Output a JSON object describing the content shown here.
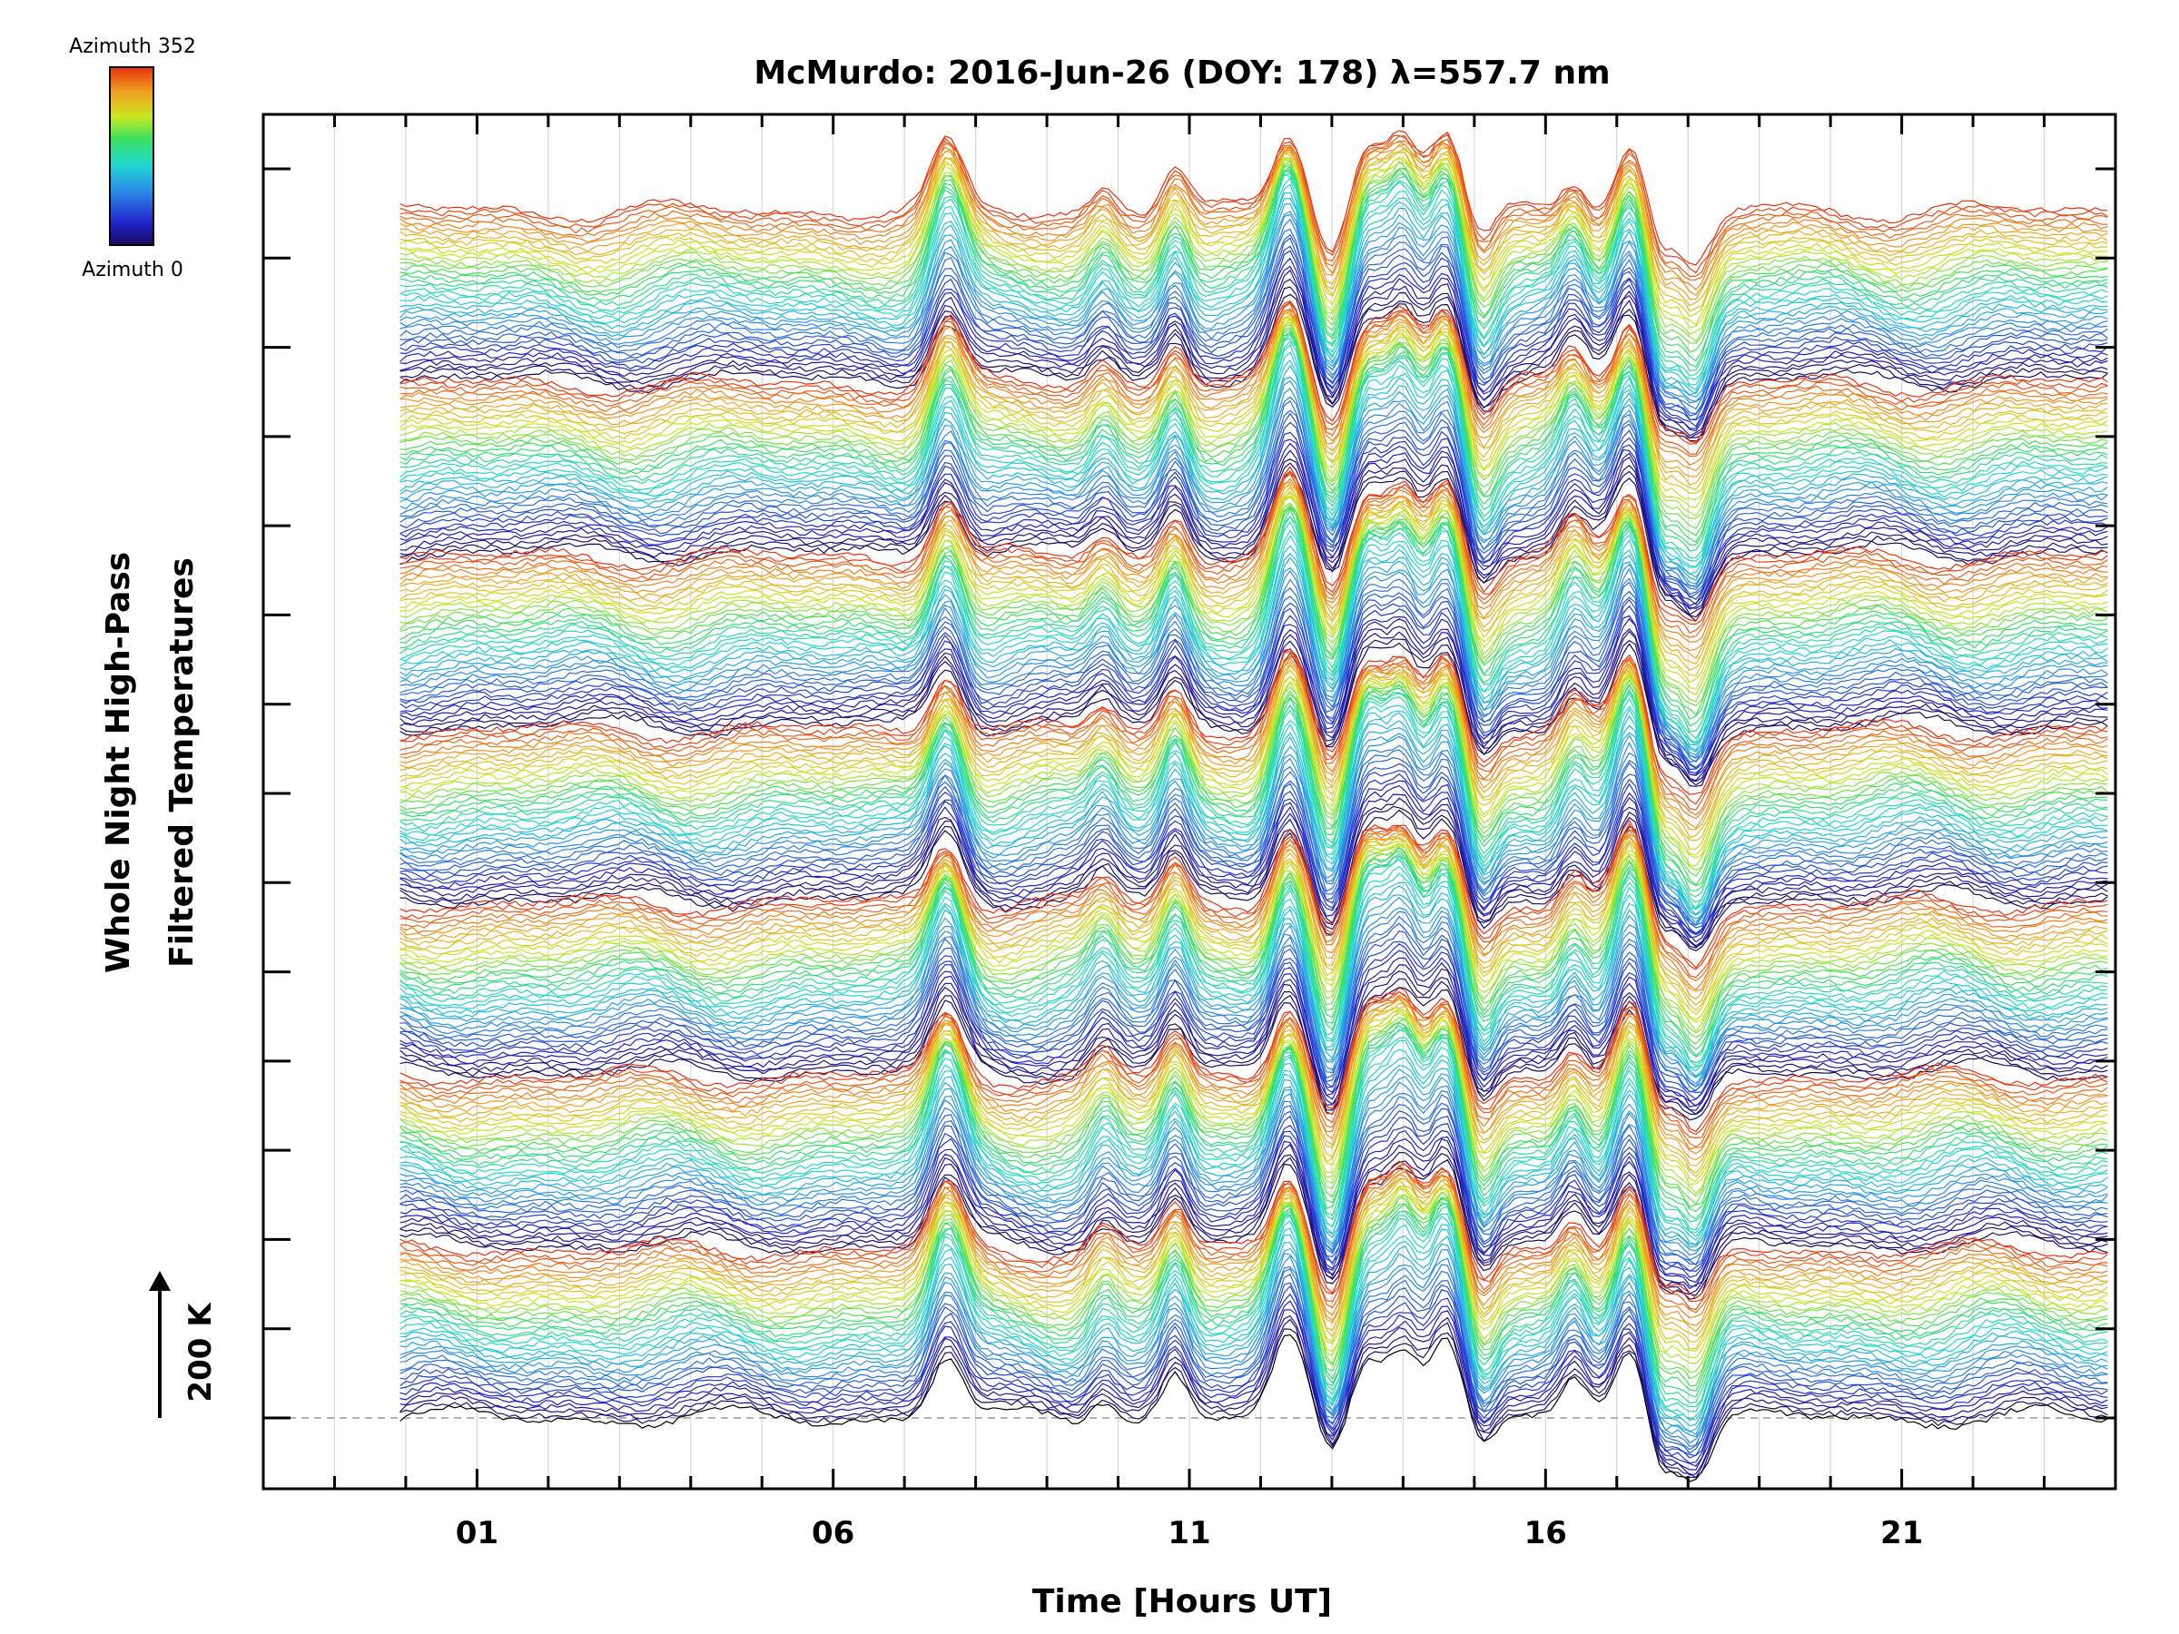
{
  "chart_data": {
    "type": "line",
    "title": "McMurdo: 2016-Jun-26 (DOY: 178) λ=557.7 nm",
    "xlabel": "Time [Hours UT]",
    "ylabel": [
      "Whole Night High-Pass",
      "Filtered Temperatures"
    ],
    "x_ticks": [
      "01",
      "06",
      "11",
      "16",
      "21"
    ],
    "x_tick_values": [
      1,
      6,
      11,
      16,
      21
    ],
    "xlim": [
      -2,
      24
    ],
    "data_xrange": [
      -0.08,
      23.9
    ],
    "y_ticks_count": 15,
    "scale_bar_label": "200 K",
    "scale_bar_value_K": 200,
    "colorbar": {
      "top_label": "Azimuth 352",
      "bottom_label": "Azimuth 0",
      "colormap": "rainbow (blue→cyan→green→yellow→orange)"
    },
    "series_description": "Stacked high-pass filtered temperature traces, one per azimuth (0–352), each offset vertically; color encodes azimuth.",
    "events": [
      {
        "hour": 7.6,
        "amplitude_K": 130
      },
      {
        "hour": 9.8,
        "amplitude_K": 50
      },
      {
        "hour": 10.8,
        "amplitude_K": 90
      },
      {
        "hour": 12.4,
        "amplitude_K": 160
      },
      {
        "hour": 13.0,
        "amplitude_K": -80
      },
      {
        "hour": 13.5,
        "amplitude_K": 130
      },
      {
        "hour": 14.0,
        "amplitude_K": 150
      },
      {
        "hour": 14.6,
        "amplitude_K": 160
      },
      {
        "hour": 15.1,
        "amplitude_K": -70
      },
      {
        "hour": 16.4,
        "amplitude_K": 70
      },
      {
        "hour": 17.2,
        "amplitude_K": 150
      },
      {
        "hour": 17.6,
        "amplitude_K": -90
      },
      {
        "hour": 18.1,
        "amplitude_K": -120
      }
    ],
    "grid": true,
    "baseline_dashed": true
  },
  "colors": {
    "background": "#ffffff",
    "axes": "#000000",
    "grid": "#d8d8d8",
    "baseline": "#999999"
  }
}
